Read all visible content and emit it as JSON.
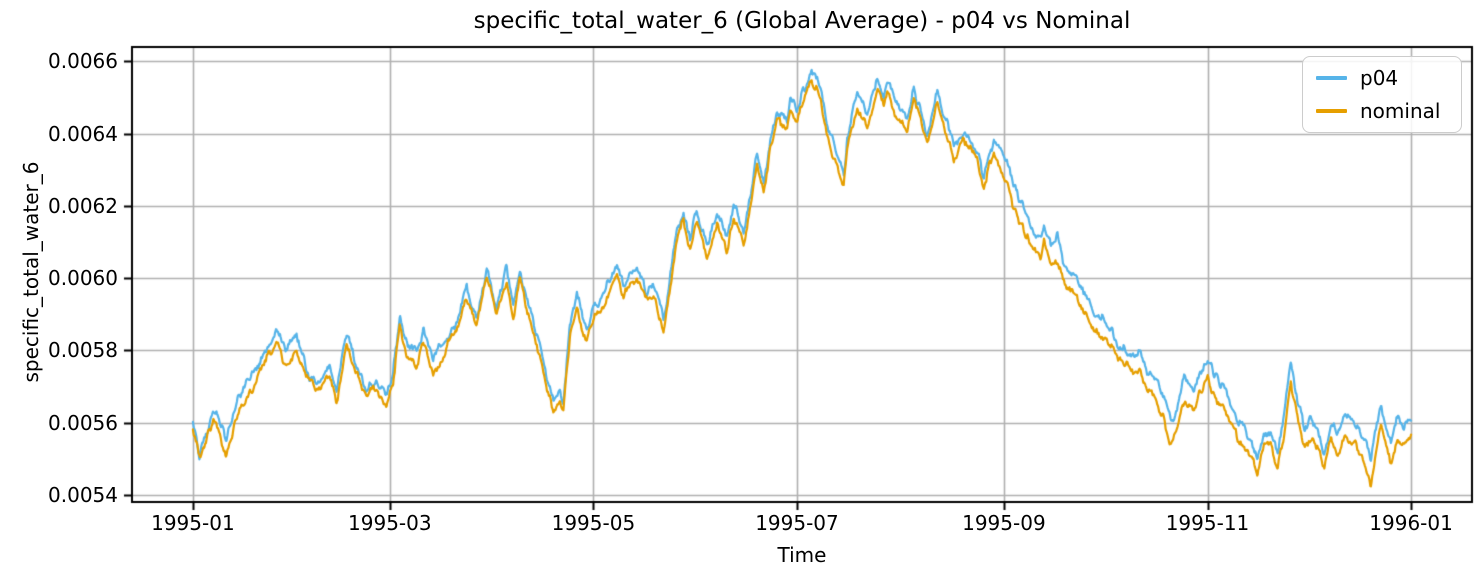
{
  "chart_data": {
    "type": "line",
    "title": "specific_total_water_6 (Global Average) - p04 vs Nominal",
    "xlabel": "Time",
    "ylabel": "specific_total_water_6",
    "background_color": "#ffffff",
    "grid": true,
    "grid_color": "#b0b0b0",
    "spine_color": "#000000",
    "line_width": 2.2,
    "x_unit": "days since 1995-01-01",
    "xlim": [
      -18.25,
      383.25
    ],
    "ylim": [
      0.00538,
      0.00664
    ],
    "xticks": [
      {
        "day": 0,
        "label": "1995-01"
      },
      {
        "day": 59,
        "label": "1995-03"
      },
      {
        "day": 120,
        "label": "1995-05"
      },
      {
        "day": 181,
        "label": "1995-07"
      },
      {
        "day": 243,
        "label": "1995-09"
      },
      {
        "day": 304,
        "label": "1995-11"
      },
      {
        "day": 365,
        "label": "1996-01"
      }
    ],
    "yticks": [
      {
        "value": 0.0054,
        "label": "0.0054"
      },
      {
        "value": 0.0056,
        "label": "0.0056"
      },
      {
        "value": 0.0058,
        "label": "0.0058"
      },
      {
        "value": 0.006,
        "label": "0.0060"
      },
      {
        "value": 0.0062,
        "label": "0.0062"
      },
      {
        "value": 0.0064,
        "label": "0.0064"
      },
      {
        "value": 0.0066,
        "label": "0.0066"
      }
    ],
    "legend": {
      "position": "upper right",
      "entries": [
        {
          "label": "p04",
          "color": "#56b4e9"
        },
        {
          "label": "nominal",
          "color": "#e69f00"
        }
      ]
    },
    "x_days": [
      0,
      2,
      4,
      6,
      8,
      10,
      14,
      18,
      21,
      25,
      28,
      31,
      35,
      37,
      41,
      43,
      46,
      49,
      52,
      55,
      58,
      60,
      62,
      64,
      67,
      69,
      72,
      75,
      77,
      79,
      82,
      85,
      88,
      91,
      94,
      96,
      98,
      101,
      104,
      106,
      108,
      110,
      111,
      113,
      115,
      118,
      120,
      122,
      125,
      127,
      129,
      131,
      133,
      136,
      138,
      140,
      141,
      143,
      145,
      147,
      149,
      151,
      154,
      157,
      160,
      162,
      165,
      167,
      169,
      171,
      173,
      175,
      178,
      179,
      181,
      184,
      185,
      187,
      188,
      190,
      193,
      195,
      196,
      199,
      201,
      202,
      204,
      205,
      207,
      208,
      210,
      213,
      214,
      216,
      218,
      220,
      223,
      225,
      227,
      228,
      231,
      233,
      235,
      237,
      240,
      242,
      244,
      246,
      249,
      251,
      254,
      255,
      257,
      259,
      261,
      264,
      266,
      269,
      270,
      273,
      275,
      277,
      279,
      282,
      284,
      286,
      289,
      291,
      293,
      295,
      297,
      300,
      302,
      304,
      306,
      309,
      311,
      313,
      315,
      317,
      319,
      321,
      323,
      325,
      327,
      329,
      331,
      333,
      335,
      337,
      339,
      341,
      343,
      345,
      347,
      349,
      351,
      353,
      355,
      356,
      358,
      359,
      361,
      363,
      365
    ],
    "series": [
      {
        "name": "p04",
        "color": "#56b4e9",
        "noise_scale": 1.12,
        "values": [
          0.005605,
          0.00552,
          0.005575,
          0.005625,
          0.005595,
          0.005555,
          0.005675,
          0.005735,
          0.005785,
          0.005855,
          0.005795,
          0.005835,
          0.005735,
          0.005715,
          0.005755,
          0.005675,
          0.005845,
          0.005765,
          0.005695,
          0.005725,
          0.005675,
          0.005735,
          0.005905,
          0.005815,
          0.005785,
          0.005855,
          0.005775,
          0.005815,
          0.005855,
          0.005895,
          0.005985,
          0.005895,
          0.006035,
          0.005915,
          0.006025,
          0.005925,
          0.006025,
          0.005895,
          0.005805,
          0.005725,
          0.005665,
          0.005685,
          0.005655,
          0.005865,
          0.005945,
          0.005845,
          0.005915,
          0.005925,
          0.005985,
          0.006035,
          0.005985,
          0.006025,
          0.006035,
          0.005965,
          0.005985,
          0.005925,
          0.005885,
          0.006015,
          0.006145,
          0.006185,
          0.006105,
          0.006185,
          0.006085,
          0.006185,
          0.006115,
          0.006205,
          0.006115,
          0.006225,
          0.006335,
          0.006255,
          0.006375,
          0.006465,
          0.006445,
          0.006505,
          0.006475,
          0.006555,
          0.00658,
          0.006565,
          0.006515,
          0.006415,
          0.006355,
          0.006295,
          0.006385,
          0.006515,
          0.006485,
          0.006445,
          0.006525,
          0.006555,
          0.006515,
          0.006555,
          0.006505,
          0.006445,
          0.006425,
          0.006525,
          0.006465,
          0.006385,
          0.006525,
          0.006445,
          0.006395,
          0.006355,
          0.006415,
          0.006385,
          0.006355,
          0.006275,
          0.006375,
          0.006355,
          0.006315,
          0.006245,
          0.006185,
          0.006145,
          0.006095,
          0.006145,
          0.006085,
          0.006105,
          0.006035,
          0.006005,
          0.005965,
          0.005935,
          0.005915,
          0.005885,
          0.005865,
          0.005825,
          0.005805,
          0.005775,
          0.005795,
          0.005735,
          0.005705,
          0.005665,
          0.005595,
          0.005635,
          0.005725,
          0.005695,
          0.005745,
          0.005775,
          0.005725,
          0.005685,
          0.005645,
          0.005605,
          0.005595,
          0.005555,
          0.0055,
          0.005585,
          0.005595,
          0.005525,
          0.005625,
          0.005755,
          0.005655,
          0.005585,
          0.005605,
          0.005585,
          0.005525,
          0.005615,
          0.005575,
          0.005615,
          0.005605,
          0.005585,
          0.005545,
          0.00549,
          0.005595,
          0.005655,
          0.005575,
          0.005535,
          0.005605,
          0.005585,
          0.005605
        ]
      },
      {
        "name": "nominal",
        "color": "#e69f00",
        "noise_scale": 1.0,
        "values": [
          0.005575,
          0.00549,
          0.005545,
          0.005595,
          0.005565,
          0.00551,
          0.005645,
          0.005705,
          0.005755,
          0.005825,
          0.005765,
          0.005805,
          0.005705,
          0.005685,
          0.005725,
          0.005645,
          0.005815,
          0.005735,
          0.005665,
          0.005695,
          0.005645,
          0.005705,
          0.005875,
          0.005785,
          0.005755,
          0.005825,
          0.005745,
          0.005785,
          0.005825,
          0.005865,
          0.005955,
          0.005865,
          0.006005,
          0.005885,
          0.005995,
          0.005895,
          0.005995,
          0.005865,
          0.005775,
          0.005695,
          0.005635,
          0.005655,
          0.005625,
          0.005835,
          0.005915,
          0.005815,
          0.005885,
          0.005895,
          0.005955,
          0.006005,
          0.005955,
          0.005995,
          0.006005,
          0.005935,
          0.005955,
          0.005895,
          0.005855,
          0.005985,
          0.006115,
          0.006155,
          0.006075,
          0.006155,
          0.006055,
          0.006155,
          0.006085,
          0.006175,
          0.006085,
          0.006195,
          0.006305,
          0.006225,
          0.006345,
          0.006435,
          0.006415,
          0.006475,
          0.006445,
          0.006525,
          0.00656,
          0.006535,
          0.006485,
          0.006385,
          0.006325,
          0.006265,
          0.006355,
          0.006485,
          0.006455,
          0.006415,
          0.006495,
          0.006525,
          0.006485,
          0.006525,
          0.006475,
          0.006415,
          0.006395,
          0.006495,
          0.006435,
          0.006355,
          0.006495,
          0.006415,
          0.006365,
          0.006325,
          0.006385,
          0.006355,
          0.006325,
          0.006245,
          0.006345,
          0.006305,
          0.006265,
          0.006195,
          0.006135,
          0.006095,
          0.006045,
          0.006095,
          0.006035,
          0.006055,
          0.005985,
          0.005955,
          0.005915,
          0.005885,
          0.005865,
          0.005835,
          0.005815,
          0.005775,
          0.005755,
          0.005725,
          0.005745,
          0.005685,
          0.005655,
          0.005615,
          0.005545,
          0.005585,
          0.005675,
          0.005645,
          0.005695,
          0.005725,
          0.005675,
          0.005635,
          0.005595,
          0.005555,
          0.005545,
          0.005505,
          0.00544,
          0.005535,
          0.005545,
          0.005475,
          0.005575,
          0.005705,
          0.005605,
          0.005535,
          0.005555,
          0.005535,
          0.005475,
          0.005565,
          0.005525,
          0.005565,
          0.005555,
          0.005535,
          0.005495,
          0.00543,
          0.005545,
          0.005605,
          0.005525,
          0.005485,
          0.005555,
          0.005535,
          0.005555
        ]
      }
    ],
    "noise": {
      "seed": 7,
      "sample_step_days": 0.15,
      "octaves": [
        {
          "period_days": 3.5,
          "amplitude": 1.1e-05
        },
        {
          "period_days": 0.9,
          "amplitude": 1e-05
        },
        {
          "period_days": 0.28,
          "amplitude": 6e-06
        }
      ]
    }
  }
}
